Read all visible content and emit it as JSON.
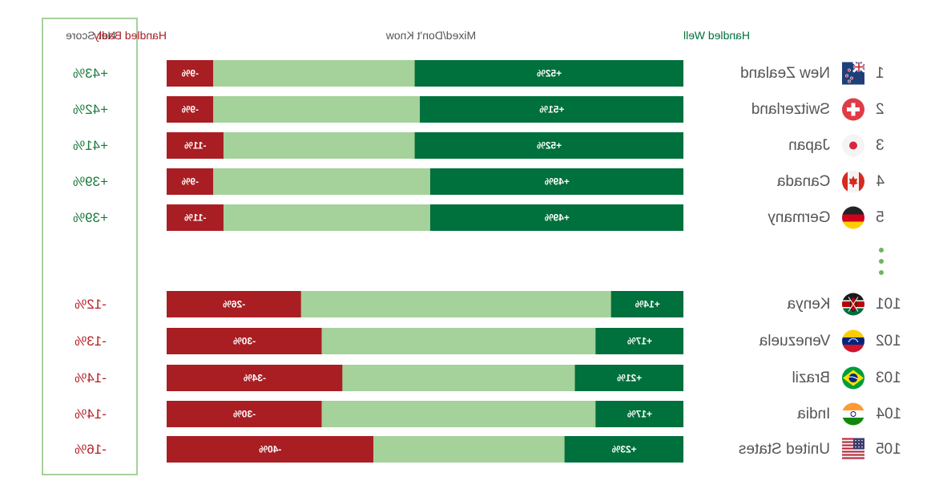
{
  "colors": {
    "badly": "#a91e23",
    "mixed": "#a5d19b",
    "well": "#00703c",
    "net_positive": "#1b7a3d",
    "net_negative": "#b51f27",
    "text_gray": "#555555",
    "dots": "#6fb45f"
  },
  "chart_data": {
    "type": "bar",
    "orientation": "horizontal",
    "stacked": true,
    "mirrored": true,
    "legend": {
      "well": "Handled Well",
      "mixed": "Mixed/Don't Know",
      "badly": "Handled Badly",
      "net": "Net Score"
    },
    "xlim": [
      0,
      100
    ],
    "top": [
      {
        "rank": "1",
        "country": "New Zealand",
        "flag_icon": "new-zealand-flag-icon",
        "well": 52,
        "badly": 9,
        "well_label": "+52%",
        "badly_label": "-9%",
        "net": "+43%"
      },
      {
        "rank": "2",
        "country": "Switzerland",
        "flag_icon": "switzerland-flag-icon",
        "well": 51,
        "badly": 9,
        "well_label": "+51%",
        "badly_label": "-9%",
        "net": "+42%"
      },
      {
        "rank": "3",
        "country": "Japan",
        "flag_icon": "japan-flag-icon",
        "well": 52,
        "badly": 11,
        "well_label": "+52%",
        "badly_label": "-11%",
        "net": "+41%"
      },
      {
        "rank": "4",
        "country": "Canada",
        "flag_icon": "canada-flag-icon",
        "well": 49,
        "badly": 9,
        "well_label": "+49%",
        "badly_label": "-9%",
        "net": "+39%"
      },
      {
        "rank": "5",
        "country": "Germany",
        "flag_icon": "germany-flag-icon",
        "well": 49,
        "badly": 11,
        "well_label": "+49%",
        "badly_label": "-11%",
        "net": "+39%"
      }
    ],
    "bottom": [
      {
        "rank": "101",
        "country": "Kenya",
        "flag_icon": "kenya-flag-icon",
        "well": 14,
        "badly": 26,
        "well_label": "+14%",
        "badly_label": "-26%",
        "net": "-12%"
      },
      {
        "rank": "102",
        "country": "Venezuela",
        "flag_icon": "venezuela-flag-icon",
        "well": 17,
        "badly": 30,
        "well_label": "+17%",
        "badly_label": "-30%",
        "net": "-13%"
      },
      {
        "rank": "103",
        "country": "Brazil",
        "flag_icon": "brazil-flag-icon",
        "well": 21,
        "badly": 34,
        "well_label": "+21%",
        "badly_label": "-34%",
        "net": "-14%"
      },
      {
        "rank": "104",
        "country": "India",
        "flag_icon": "india-flag-icon",
        "well": 17,
        "badly": 30,
        "well_label": "+17%",
        "badly_label": "-30%",
        "net": "-14%"
      },
      {
        "rank": "105",
        "country": "United States",
        "flag_icon": "united-states-flag-icon",
        "well": 23,
        "badly": 40,
        "well_label": "+23%",
        "badly_label": "-40%",
        "net": "-16%"
      }
    ]
  }
}
